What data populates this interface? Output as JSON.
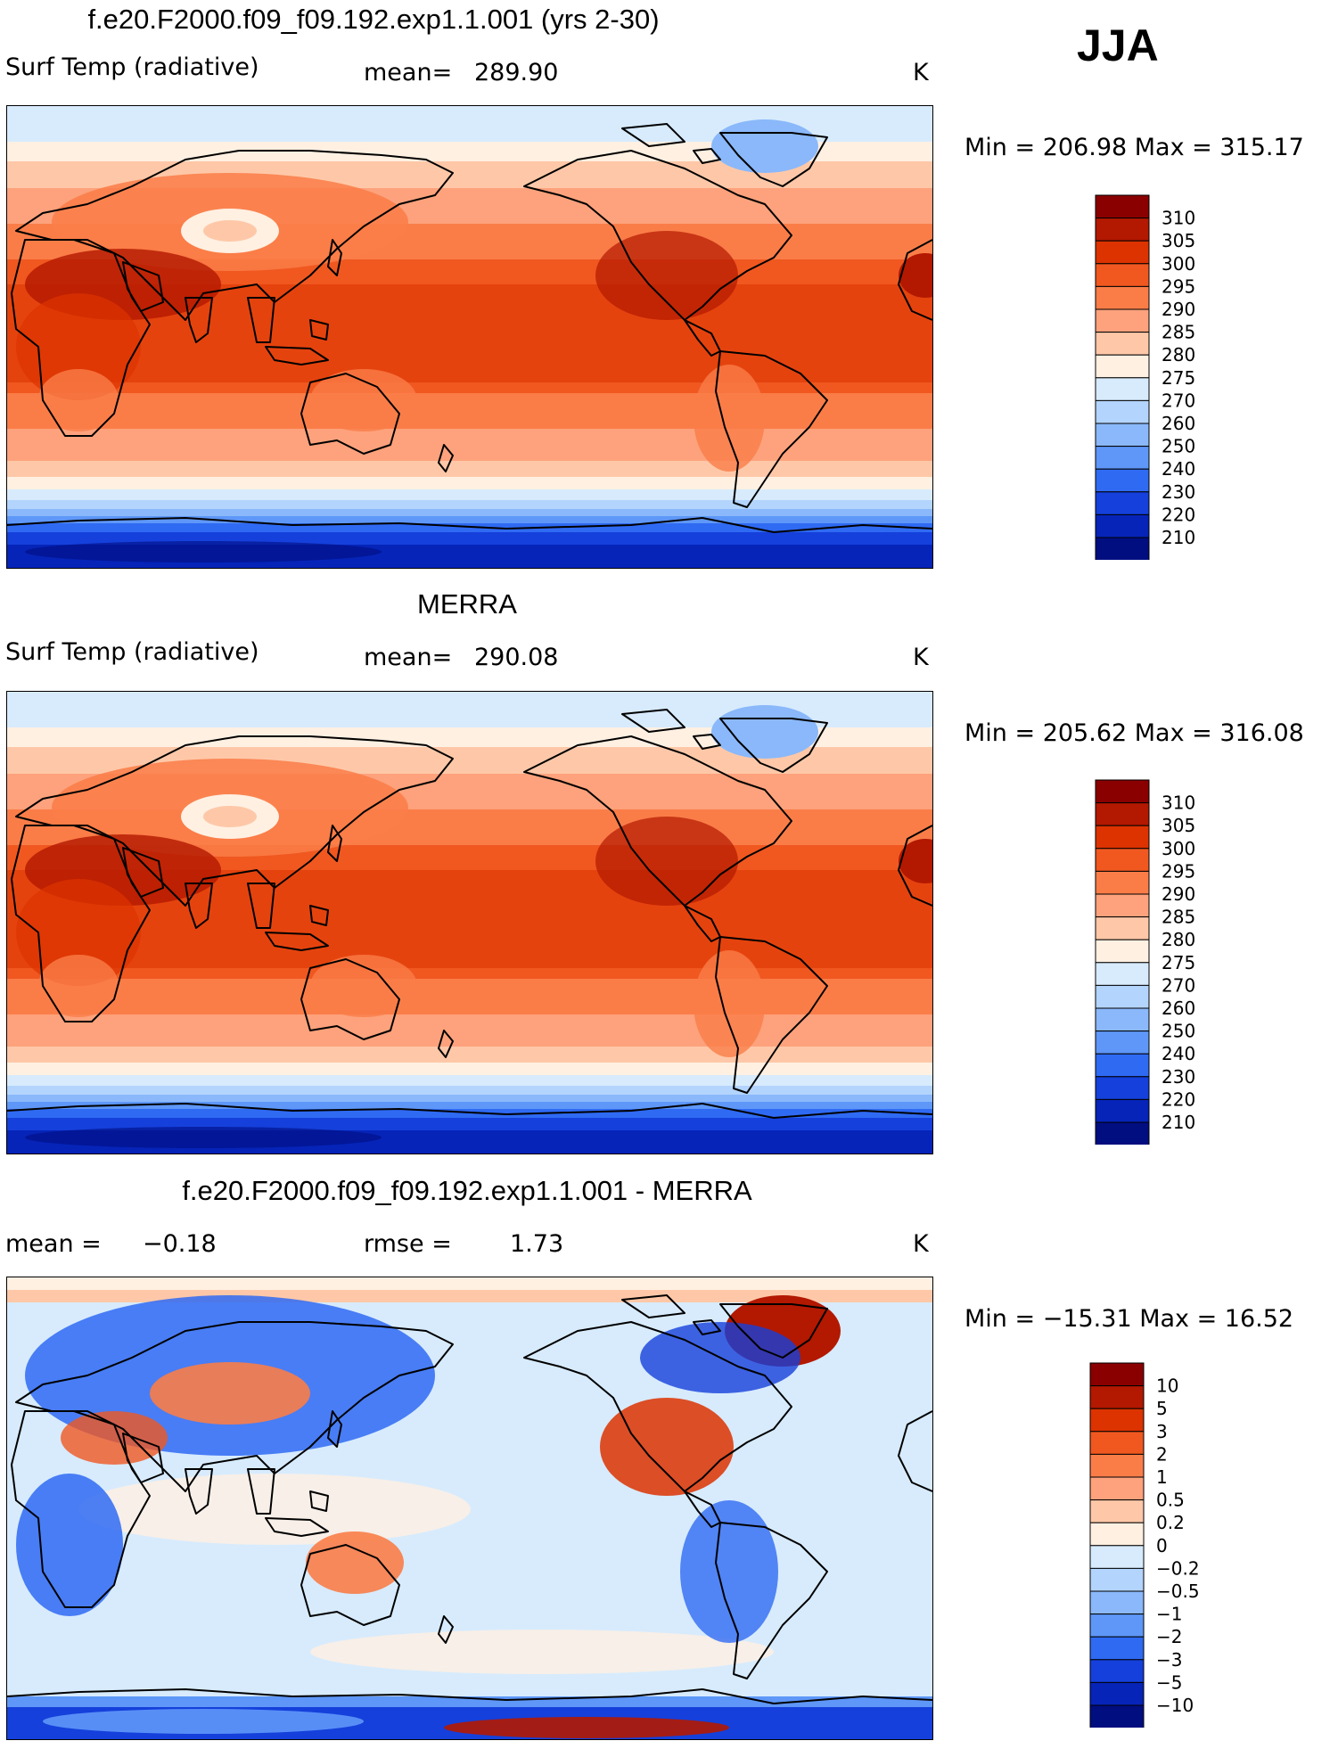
{
  "figure": {
    "season": "JJA",
    "panels": [
      {
        "title": "f.e20.F2000.f09_f09.192.exp1.1.001 (yrs 2-30)",
        "left_label": "Surf Temp (radiative)",
        "stat_label": "mean=",
        "stat_value": "289.90",
        "units": "K",
        "minmax": "Min = 206.98 Max = 315.17",
        "palette": "absolute"
      },
      {
        "title": "MERRA",
        "left_label": "Surf Temp (radiative)",
        "stat_label": "mean=",
        "stat_value": "290.08",
        "units": "K",
        "minmax": "Min = 205.62 Max = 316.08",
        "palette": "absolute"
      },
      {
        "title": "f.e20.F2000.f09_f09.192.exp1.1.001 - MERRA",
        "left_label": "mean =",
        "left_value": "−0.18",
        "stat_label": "rmse =",
        "stat_value": "1.73",
        "units": "K",
        "minmax": "Min = −15.31 Max = 16.52",
        "palette": "difference"
      }
    ],
    "legend_abs": {
      "labels": [
        "310",
        "305",
        "300",
        "295",
        "290",
        "285",
        "280",
        "275",
        "270",
        "260",
        "250",
        "240",
        "230",
        "220",
        "210"
      ],
      "colors": [
        "#8a0000",
        "#b31800",
        "#dd3300",
        "#f05820",
        "#fa7d48",
        "#fda27c",
        "#fec8a8",
        "#fff0e2",
        "#d7ebfd",
        "#b3d4fc",
        "#8ab8fa",
        "#5e97f8",
        "#2f6af3",
        "#1540db",
        "#0624b8",
        "#000e80"
      ]
    },
    "legend_diff": {
      "labels": [
        "10",
        "5",
        "3",
        "2",
        "1",
        "0.5",
        "0.2",
        "0",
        "−0.2",
        "−0.5",
        "−1",
        "−2",
        "−3",
        "−5",
        "−10"
      ],
      "colors": [
        "#8a0000",
        "#b31800",
        "#dd3300",
        "#f05820",
        "#fa7d48",
        "#fda27c",
        "#fec8a8",
        "#fff0e2",
        "#d7ebfd",
        "#b3d4fc",
        "#8ab8fa",
        "#5e97f8",
        "#2f6af3",
        "#1540db",
        "#0624b8",
        "#000e80"
      ]
    }
  }
}
